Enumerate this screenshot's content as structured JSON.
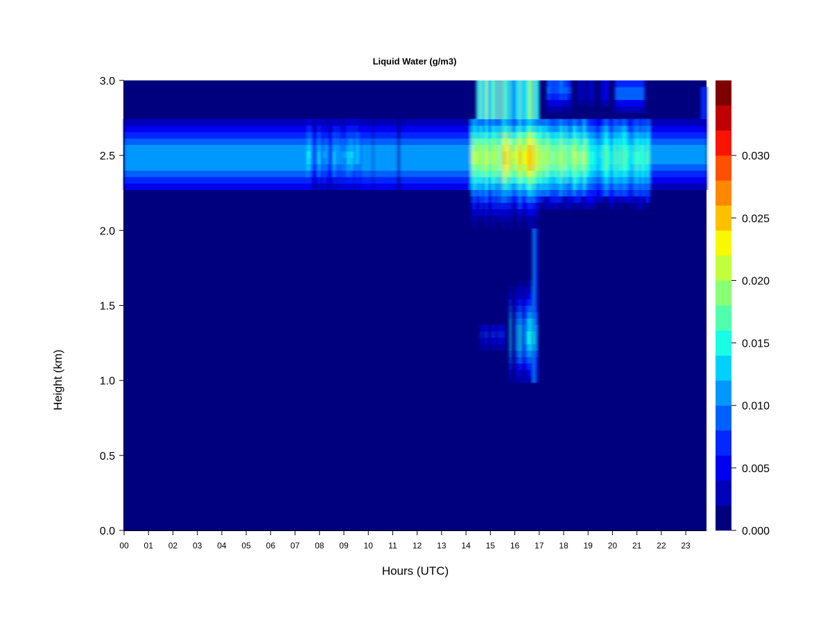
{
  "chart_data": {
    "type": "heatmap",
    "title": "Liquid Water (g/m3)",
    "xlabel": "Hours (UTC)",
    "ylabel": "Height (km)",
    "xlim": [
      0,
      23.85
    ],
    "ylim": [
      0,
      3.0
    ],
    "x_ticks": [
      {
        "value": 0,
        "label": "00"
      },
      {
        "value": 1,
        "label": "01"
      },
      {
        "value": 2,
        "label": "02"
      },
      {
        "value": 3,
        "label": "03"
      },
      {
        "value": 4,
        "label": "04"
      },
      {
        "value": 5,
        "label": "05"
      },
      {
        "value": 6,
        "label": "06"
      },
      {
        "value": 7,
        "label": "07"
      },
      {
        "value": 8,
        "label": "08"
      },
      {
        "value": 9,
        "label": "09"
      },
      {
        "value": 10,
        "label": "10"
      },
      {
        "value": 11,
        "label": "11"
      },
      {
        "value": 12,
        "label": "12"
      },
      {
        "value": 13,
        "label": "13"
      },
      {
        "value": 14,
        "label": "14"
      },
      {
        "value": 15,
        "label": "15"
      },
      {
        "value": 16,
        "label": "16"
      },
      {
        "value": 17,
        "label": "17"
      },
      {
        "value": 18,
        "label": "18"
      },
      {
        "value": 19,
        "label": "19"
      },
      {
        "value": 20,
        "label": "20"
      },
      {
        "value": 21,
        "label": "21"
      },
      {
        "value": 22,
        "label": "22"
      },
      {
        "value": 23,
        "label": "23"
      }
    ],
    "y_ticks": [
      {
        "value": 0.0,
        "label": "0.0"
      },
      {
        "value": 0.5,
        "label": "0.5"
      },
      {
        "value": 1.0,
        "label": "1.0"
      },
      {
        "value": 1.5,
        "label": "1.5"
      },
      {
        "value": 2.0,
        "label": "2.0"
      },
      {
        "value": 2.5,
        "label": "2.5"
      },
      {
        "value": 3.0,
        "label": "3.0"
      }
    ],
    "colorbar": {
      "range": [
        0.0,
        0.032
      ],
      "levels": 16,
      "colors": [
        "#00007F",
        "#0000B8",
        "#0000F0",
        "#0028FF",
        "#0060FF",
        "#0098FF",
        "#00D0FF",
        "#18FFE4",
        "#50FFAC",
        "#88FF74",
        "#C0FF3C",
        "#F8F800",
        "#FFC000",
        "#FF8800",
        "#FF5000",
        "#F81400",
        "#C00000",
        "#800000"
      ],
      "ticks": [
        {
          "value": 0.0,
          "label": "0.000"
        },
        {
          "value": 0.005,
          "label": "0.005"
        },
        {
          "value": 0.01,
          "label": "0.010"
        },
        {
          "value": 0.015,
          "label": "0.015"
        },
        {
          "value": 0.02,
          "label": "0.020"
        },
        {
          "value": 0.025,
          "label": "0.025"
        },
        {
          "value": 0.03,
          "label": "0.030"
        }
      ]
    },
    "background_value": 0.0,
    "features": [
      {
        "name": "persistent cloud layer 00-14 UTC",
        "x": [
          0,
          14.2
        ],
        "y_center": 2.5,
        "y_half_width": 0.24,
        "peak": 0.011
      },
      {
        "name": "cloud layer 14-21.5 UTC",
        "x": [
          14.2,
          21.5
        ],
        "y_center": 2.48,
        "y_half_width": 0.26,
        "peak": 0.019
      },
      {
        "name": "cloud layer 21.5-24 UTC",
        "x": [
          21.5,
          23.85
        ],
        "y_center": 2.5,
        "y_half_width": 0.24,
        "peak": 0.01
      },
      {
        "name": "upper cloud 14.4-17 UTC",
        "x": [
          14.4,
          17.0
        ],
        "y_center": 2.9,
        "peak": 0.012
      },
      {
        "name": "upper cloud 17.3-21.3 UTC",
        "x": [
          17.3,
          21.3
        ],
        "y_center": 2.9,
        "peak": 0.008
      },
      {
        "name": "low cloud 14.5-16.9 UTC",
        "x": [
          14.5,
          16.9
        ],
        "y_center": 1.35,
        "peak": 0.012
      }
    ]
  }
}
